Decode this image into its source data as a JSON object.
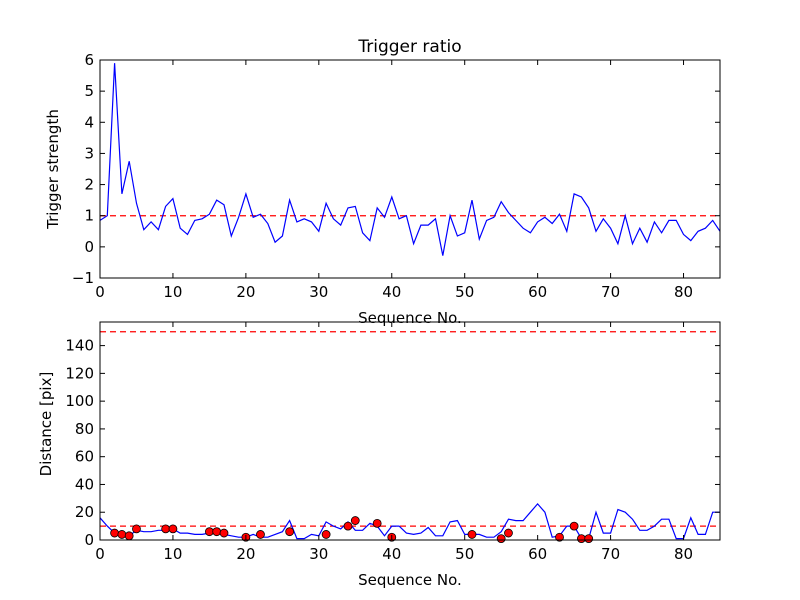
{
  "chart_data": [
    {
      "type": "line",
      "title": "Trigger ratio",
      "xlabel": "Sequence No.",
      "ylabel": "Trigger strength",
      "xlim": [
        0,
        85
      ],
      "ylim": [
        -1,
        6
      ],
      "xticks": [
        0,
        10,
        20,
        30,
        40,
        50,
        60,
        70,
        80
      ],
      "yticks": [
        -1,
        0,
        1,
        2,
        3,
        4,
        5,
        6
      ],
      "threshold": 1,
      "line_color": "#0000ff",
      "threshold_color": "#ff0000",
      "series": [
        {
          "name": "trigger strength",
          "values": [
            0.85,
            1.0,
            5.9,
            1.7,
            2.75,
            1.4,
            0.55,
            0.8,
            0.55,
            1.3,
            1.55,
            0.6,
            0.4,
            0.85,
            0.9,
            1.05,
            1.5,
            1.35,
            0.35,
            0.95,
            1.7,
            0.95,
            1.05,
            0.75,
            0.15,
            0.35,
            1.5,
            0.8,
            0.9,
            0.8,
            0.5,
            1.4,
            0.9,
            0.7,
            1.25,
            1.3,
            0.45,
            0.2,
            1.25,
            0.95,
            1.6,
            0.9,
            1.0,
            0.1,
            0.7,
            0.7,
            0.9,
            -0.28,
            1.0,
            0.35,
            0.45,
            1.5,
            0.25,
            0.85,
            0.95,
            1.45,
            1.1,
            0.85,
            0.6,
            0.45,
            0.8,
            0.95,
            0.75,
            1.05,
            0.5,
            1.7,
            1.6,
            1.25,
            0.5,
            0.9,
            0.6,
            0.1,
            1.0,
            0.1,
            0.6,
            0.15,
            0.8,
            0.45,
            0.85,
            0.85,
            0.4,
            0.2,
            0.5,
            0.6,
            0.85,
            0.5
          ]
        }
      ]
    },
    {
      "type": "line",
      "title": "",
      "xlabel": "Sequence No.",
      "ylabel": "Distance [pix]",
      "xlim": [
        0,
        85
      ],
      "ylim": [
        0,
        157
      ],
      "xticks": [
        0,
        10,
        20,
        30,
        40,
        50,
        60,
        70,
        80
      ],
      "yticks": [
        0,
        20,
        40,
        60,
        80,
        100,
        120,
        140
      ],
      "thresholds": [
        10,
        150
      ],
      "line_color": "#0000ff",
      "threshold_color": "#ff0000",
      "marker_color": "#ff0000",
      "series": [
        {
          "name": "distance",
          "values": [
            16,
            10,
            5,
            3,
            3,
            7,
            6,
            6,
            7,
            7,
            8,
            5,
            5,
            4,
            4,
            5,
            5,
            4,
            3,
            2,
            2,
            4,
            2,
            2,
            4,
            6,
            14,
            1,
            1,
            4,
            3,
            13,
            10,
            8,
            13,
            7,
            7,
            12,
            10,
            3,
            10,
            10,
            5,
            4,
            5,
            9,
            3,
            3,
            13,
            14,
            4,
            4,
            4,
            2,
            2,
            6,
            15,
            14,
            14,
            20,
            26,
            20,
            2,
            3,
            10,
            10,
            1,
            1,
            20,
            5,
            5,
            22,
            20,
            15,
            7,
            7,
            10,
            15,
            15,
            1,
            1,
            16,
            4,
            4,
            20,
            20
          ]
        },
        {
          "name": "flagged points",
          "points": [
            [
              2,
              5
            ],
            [
              3,
              4
            ],
            [
              4,
              3
            ],
            [
              5,
              8
            ],
            [
              9,
              8
            ],
            [
              10,
              8
            ],
            [
              15,
              6
            ],
            [
              16,
              6
            ],
            [
              17,
              5
            ],
            [
              20,
              2
            ],
            [
              22,
              4
            ],
            [
              26,
              6
            ],
            [
              31,
              4
            ],
            [
              34,
              10
            ],
            [
              35,
              14
            ],
            [
              38,
              12
            ],
            [
              40,
              2
            ],
            [
              51,
              4
            ],
            [
              55,
              1
            ],
            [
              56,
              5
            ],
            [
              63,
              2
            ],
            [
              65,
              10
            ],
            [
              66,
              1
            ],
            [
              67,
              1
            ]
          ]
        }
      ]
    }
  ]
}
